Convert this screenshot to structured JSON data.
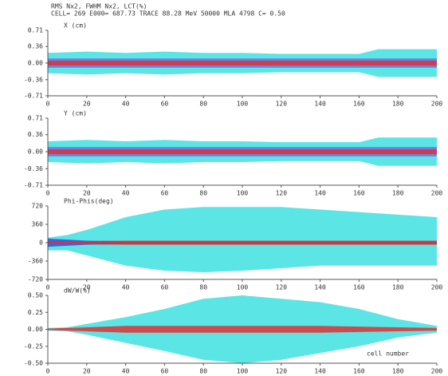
{
  "chart_data": [
    {
      "type": "area",
      "title": "RMS Nx2, FWHM Nx2, LCT(%)",
      "subtitle": "CELL= 269 E000= 687.73 TRACE 88.28 MeV 50000 MLA 4798 C= 0.50",
      "ylabel": "X (cm)",
      "xlim": [
        0,
        200
      ],
      "xticks": [
        0,
        20,
        40,
        60,
        80,
        100,
        120,
        140,
        160,
        180,
        200
      ],
      "ylim": [
        -0.71,
        0.71
      ],
      "yticks": [
        -0.71,
        -0.36,
        {
          "value": 0,
          "label": "0.00"
        },
        0.36,
        0.71
      ],
      "x": [
        0,
        20,
        40,
        60,
        80,
        100,
        120,
        140,
        160,
        170,
        180,
        200
      ],
      "series": [
        {
          "color": "#40e0e0",
          "upper": [
            0.22,
            0.25,
            0.22,
            0.25,
            0.22,
            0.22,
            0.2,
            0.2,
            0.2,
            0.3,
            0.3,
            0.3
          ],
          "lower": [
            -0.22,
            -0.25,
            -0.22,
            -0.25,
            -0.22,
            -0.22,
            -0.2,
            -0.2,
            -0.2,
            -0.3,
            -0.3,
            -0.3
          ]
        },
        {
          "color": "#7070e0",
          "upper": [
            0.1,
            0.1,
            0.1,
            0.1,
            0.1,
            0.1,
            0.1,
            0.1,
            0.1,
            0.1,
            0.1,
            0.1
          ],
          "lower": [
            -0.1,
            -0.1,
            -0.1,
            -0.1,
            -0.1,
            -0.1,
            -0.1,
            -0.1,
            -0.1,
            -0.1,
            -0.1,
            -0.1
          ]
        },
        {
          "color": "#e03030",
          "upper": [
            0.05,
            0.05,
            0.05,
            0.05,
            0.05,
            0.05,
            0.05,
            0.05,
            0.05,
            0.05,
            0.05,
            0.05
          ],
          "lower": [
            -0.05,
            -0.05,
            -0.05,
            -0.05,
            -0.05,
            -0.05,
            -0.05,
            -0.05,
            -0.05,
            -0.05,
            -0.05,
            -0.05
          ]
        }
      ]
    },
    {
      "type": "area",
      "ylabel": "Y (cm)",
      "xlim": [
        0,
        200
      ],
      "xticks": [
        0,
        20,
        40,
        60,
        80,
        100,
        120,
        140,
        160,
        180,
        200
      ],
      "ylim": [
        -0.71,
        0.71
      ],
      "yticks": [
        -0.71,
        -0.36,
        {
          "value": 0,
          "label": "0.00"
        },
        0.36,
        0.71
      ],
      "x": [
        0,
        20,
        40,
        60,
        80,
        100,
        120,
        140,
        160,
        170,
        180,
        200
      ],
      "series": [
        {
          "color": "#40e0e0",
          "upper": [
            0.22,
            0.25,
            0.22,
            0.25,
            0.22,
            0.22,
            0.2,
            0.2,
            0.2,
            0.3,
            0.3,
            0.3
          ],
          "lower": [
            -0.22,
            -0.25,
            -0.22,
            -0.25,
            -0.22,
            -0.22,
            -0.2,
            -0.2,
            -0.2,
            -0.3,
            -0.3,
            -0.3
          ]
        },
        {
          "color": "#7070e0",
          "upper": [
            0.1,
            0.1,
            0.1,
            0.1,
            0.1,
            0.1,
            0.1,
            0.1,
            0.1,
            0.1,
            0.1,
            0.1
          ],
          "lower": [
            -0.1,
            -0.1,
            -0.1,
            -0.1,
            -0.1,
            -0.1,
            -0.1,
            -0.1,
            -0.1,
            -0.1,
            -0.1,
            -0.1
          ]
        },
        {
          "color": "#e03030",
          "upper": [
            0.05,
            0.05,
            0.05,
            0.05,
            0.05,
            0.05,
            0.05,
            0.05,
            0.05,
            0.05,
            0.05,
            0.05
          ],
          "lower": [
            -0.05,
            -0.05,
            -0.05,
            -0.05,
            -0.05,
            -0.05,
            -0.05,
            -0.05,
            -0.05,
            -0.05,
            -0.05,
            -0.05
          ]
        }
      ]
    },
    {
      "type": "area",
      "ylabel": "Phi-Phis(deg)",
      "xlim": [
        0,
        200
      ],
      "xticks": [
        0,
        20,
        40,
        60,
        80,
        100,
        120,
        140,
        160,
        180,
        200
      ],
      "ylim": [
        -720,
        720
      ],
      "yticks": [
        -720,
        -360,
        0,
        360,
        720
      ],
      "x": [
        0,
        10,
        20,
        40,
        60,
        80,
        100,
        120,
        140,
        160,
        180,
        200
      ],
      "series": [
        {
          "color": "#40e0e0",
          "upper": [
            100,
            150,
            250,
            500,
            650,
            700,
            700,
            700,
            650,
            600,
            550,
            500
          ],
          "lower": [
            -150,
            -150,
            -250,
            -450,
            -550,
            -580,
            -550,
            -500,
            -450,
            -450,
            -450,
            -450
          ]
        },
        {
          "color": "#3050e0",
          "upper": [
            80,
            60,
            40,
            30,
            30,
            30,
            30,
            30,
            30,
            30,
            30,
            30
          ],
          "lower": [
            -80,
            -60,
            -40,
            -30,
            -30,
            -30,
            -30,
            -30,
            -30,
            -30,
            -30,
            -30
          ]
        },
        {
          "color": "#e03030",
          "upper": [
            20,
            20,
            30,
            40,
            40,
            40,
            40,
            40,
            40,
            40,
            40,
            40
          ],
          "lower": [
            -20,
            -20,
            -30,
            -40,
            -40,
            -40,
            -40,
            -40,
            -40,
            -40,
            -40,
            -40
          ]
        }
      ]
    },
    {
      "type": "area",
      "ylabel": "dW/W(%)",
      "annotation": "cell number",
      "xlim": [
        0,
        200
      ],
      "xticks": [
        0,
        20,
        40,
        60,
        80,
        100,
        120,
        140,
        160,
        180,
        200
      ],
      "ylim": [
        -0.5,
        0.5
      ],
      "yticks": [
        {
          "value": -0.5,
          "label": "-0.50"
        },
        -0.25,
        {
          "value": 0,
          "label": "0.00"
        },
        0.25,
        {
          "value": 0.5,
          "label": "0.50"
        }
      ],
      "x": [
        0,
        10,
        20,
        40,
        60,
        80,
        100,
        120,
        140,
        160,
        180,
        200
      ],
      "series": [
        {
          "color": "#40e0e0",
          "upper": [
            0.02,
            0.03,
            0.08,
            0.18,
            0.3,
            0.45,
            0.5,
            0.45,
            0.4,
            0.3,
            0.15,
            0.05
          ],
          "lower": [
            -0.02,
            -0.03,
            -0.08,
            -0.2,
            -0.32,
            -0.45,
            -0.5,
            -0.45,
            -0.35,
            -0.25,
            -0.12,
            -0.05
          ]
        },
        {
          "color": "#e03030",
          "upper": [
            0.01,
            0.02,
            0.03,
            0.05,
            0.05,
            0.05,
            0.05,
            0.05,
            0.05,
            0.04,
            0.03,
            0.02
          ],
          "lower": [
            -0.01,
            -0.02,
            -0.03,
            -0.05,
            -0.05,
            -0.05,
            -0.05,
            -0.05,
            -0.05,
            -0.04,
            -0.03,
            -0.02
          ]
        }
      ]
    }
  ]
}
